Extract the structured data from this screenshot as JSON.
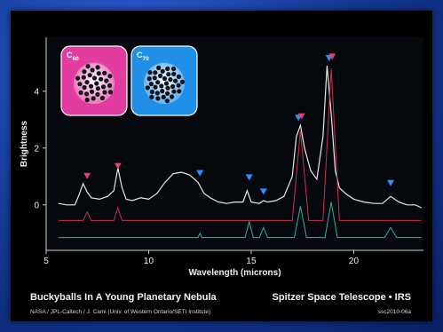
{
  "chart_data": {
    "type": "line",
    "xlabel": "Wavelength (microns)",
    "ylabel": "Brightness",
    "xlim": [
      5,
      23.4
    ],
    "ylim": [
      -1.6,
      5.9
    ],
    "x_ticks": [
      5,
      10,
      15,
      20
    ],
    "y_ticks": [
      0,
      2,
      4
    ],
    "grid": false,
    "series": [
      {
        "color": "#e8e8e8",
        "x": [
          5.6,
          6.0,
          6.4,
          6.6,
          6.8,
          7.0,
          7.2,
          7.6,
          8.0,
          8.3,
          8.5,
          8.7,
          8.9,
          9.2,
          9.6,
          10.0,
          10.4,
          10.8,
          11.2,
          11.6,
          12.0,
          12.4,
          12.7,
          13.0,
          13.4,
          13.8,
          14.2,
          14.6,
          14.8,
          15.0,
          15.4,
          15.6,
          15.8,
          16.2,
          16.6,
          17.0,
          17.2,
          17.4,
          17.6,
          17.9,
          18.2,
          18.5,
          18.7,
          18.9,
          19.1,
          19.3,
          19.6,
          20.0,
          20.5,
          21.0,
          21.4,
          21.8,
          22.2,
          22.6,
          23.0,
          23.3
        ],
        "y": [
          0.05,
          0.0,
          0.0,
          0.35,
          0.75,
          0.45,
          0.25,
          0.2,
          0.3,
          0.5,
          1.3,
          0.6,
          0.2,
          0.15,
          0.25,
          0.2,
          0.4,
          0.8,
          1.1,
          1.15,
          1.05,
          0.8,
          0.4,
          0.25,
          0.1,
          0.05,
          0.1,
          0.1,
          0.5,
          0.1,
          0.05,
          0.15,
          0.1,
          0.15,
          0.3,
          1.0,
          2.4,
          2.8,
          2.0,
          1.2,
          0.9,
          2.4,
          4.9,
          3.2,
          1.2,
          0.6,
          0.4,
          0.2,
          0.1,
          0.05,
          0.05,
          0.3,
          0.1,
          0.0,
          0.0,
          -0.1
        ]
      },
      {
        "color": "#c8324f",
        "x": [
          5.6,
          6.8,
          7.0,
          7.2,
          8.3,
          8.5,
          8.7,
          17.0,
          17.4,
          17.8,
          18.5,
          18.9,
          19.3,
          23.3
        ],
        "y": [
          -0.55,
          -0.55,
          -0.25,
          -0.55,
          -0.55,
          -0.1,
          -0.55,
          -0.55,
          2.6,
          -0.55,
          -0.55,
          4.8,
          -0.55,
          -0.55
        ]
      },
      {
        "color": "#2fb3a5",
        "x": [
          5.6,
          12.4,
          12.5,
          12.6,
          14.7,
          14.9,
          15.1,
          15.4,
          15.6,
          15.8,
          17.1,
          17.4,
          17.7,
          18.6,
          18.9,
          19.2,
          21.5,
          21.8,
          22.1,
          23.3
        ],
        "y": [
          -1.15,
          -1.15,
          -1.0,
          -1.15,
          -1.15,
          -0.6,
          -1.15,
          -1.15,
          -0.8,
          -1.15,
          -1.15,
          -0.05,
          -1.15,
          -1.15,
          0.1,
          -1.15,
          -1.15,
          -0.8,
          -1.15,
          -1.15
        ]
      }
    ],
    "markers": [
      {
        "x": 7.0,
        "y": 1.0,
        "color": "#e0406a"
      },
      {
        "x": 8.5,
        "y": 1.35,
        "color": "#e0406a"
      },
      {
        "x": 12.5,
        "y": 1.1,
        "color": "#2f8fff"
      },
      {
        "x": 14.9,
        "y": 0.95,
        "color": "#2f8fff"
      },
      {
        "x": 15.6,
        "y": 0.45,
        "color": "#2f8fff"
      },
      {
        "x": 17.3,
        "y": 3.05,
        "color": "#2f8fff"
      },
      {
        "x": 17.45,
        "y": 3.1,
        "color": "#e0406a"
      },
      {
        "x": 18.8,
        "y": 5.15,
        "color": "#2f8fff"
      },
      {
        "x": 18.95,
        "y": 5.2,
        "color": "#e0406a"
      },
      {
        "x": 21.8,
        "y": 0.75,
        "color": "#2f8fff"
      }
    ],
    "molecules": [
      {
        "base": "C",
        "sub": "60",
        "color": "#e23ca0"
      },
      {
        "base": "C",
        "sub": "70",
        "color": "#1f8fe8"
      }
    ]
  },
  "footer": {
    "title": "Buckyballs In A Young Planetary Nebula",
    "credit": "NASA / JPL-Caltech / J. Cami (Univ. of Western Ontario/SETI Institute)",
    "mission": "Spitzer Space Telescope • IRS",
    "image_id": "ssc2010-06a"
  }
}
